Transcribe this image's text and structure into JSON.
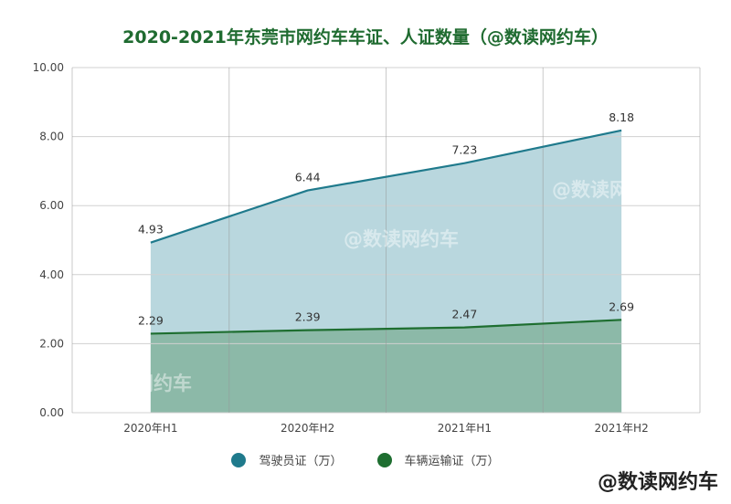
{
  "chart_data": {
    "type": "area",
    "title": "2020-2021年东莞市网约车车证、人证数量（@数读网约车）",
    "categories": [
      "2020年H1",
      "2020年H2",
      "2021年H1",
      "2021年H2"
    ],
    "ylim": [
      0,
      10
    ],
    "yticks": [
      "0.00",
      "2.00",
      "4.00",
      "6.00",
      "8.00",
      "10.00"
    ],
    "grid": true,
    "legend_position": "bottom",
    "series": [
      {
        "name": "驾驶员证（万）",
        "values": [
          4.93,
          6.44,
          7.23,
          8.18
        ],
        "labels": [
          "4.93",
          "6.44",
          "7.23",
          "8.18"
        ],
        "line_color": "#1f7a8c",
        "fill_color": "#b9d7de"
      },
      {
        "name": "车辆运输证（万）",
        "values": [
          2.29,
          2.39,
          2.47,
          2.69
        ],
        "labels": [
          "2.29",
          "2.39",
          "2.47",
          "2.69"
        ],
        "line_color": "#1e6e30",
        "fill_color": "#8cb9a8"
      }
    ]
  },
  "watermark": "@数读网约车"
}
